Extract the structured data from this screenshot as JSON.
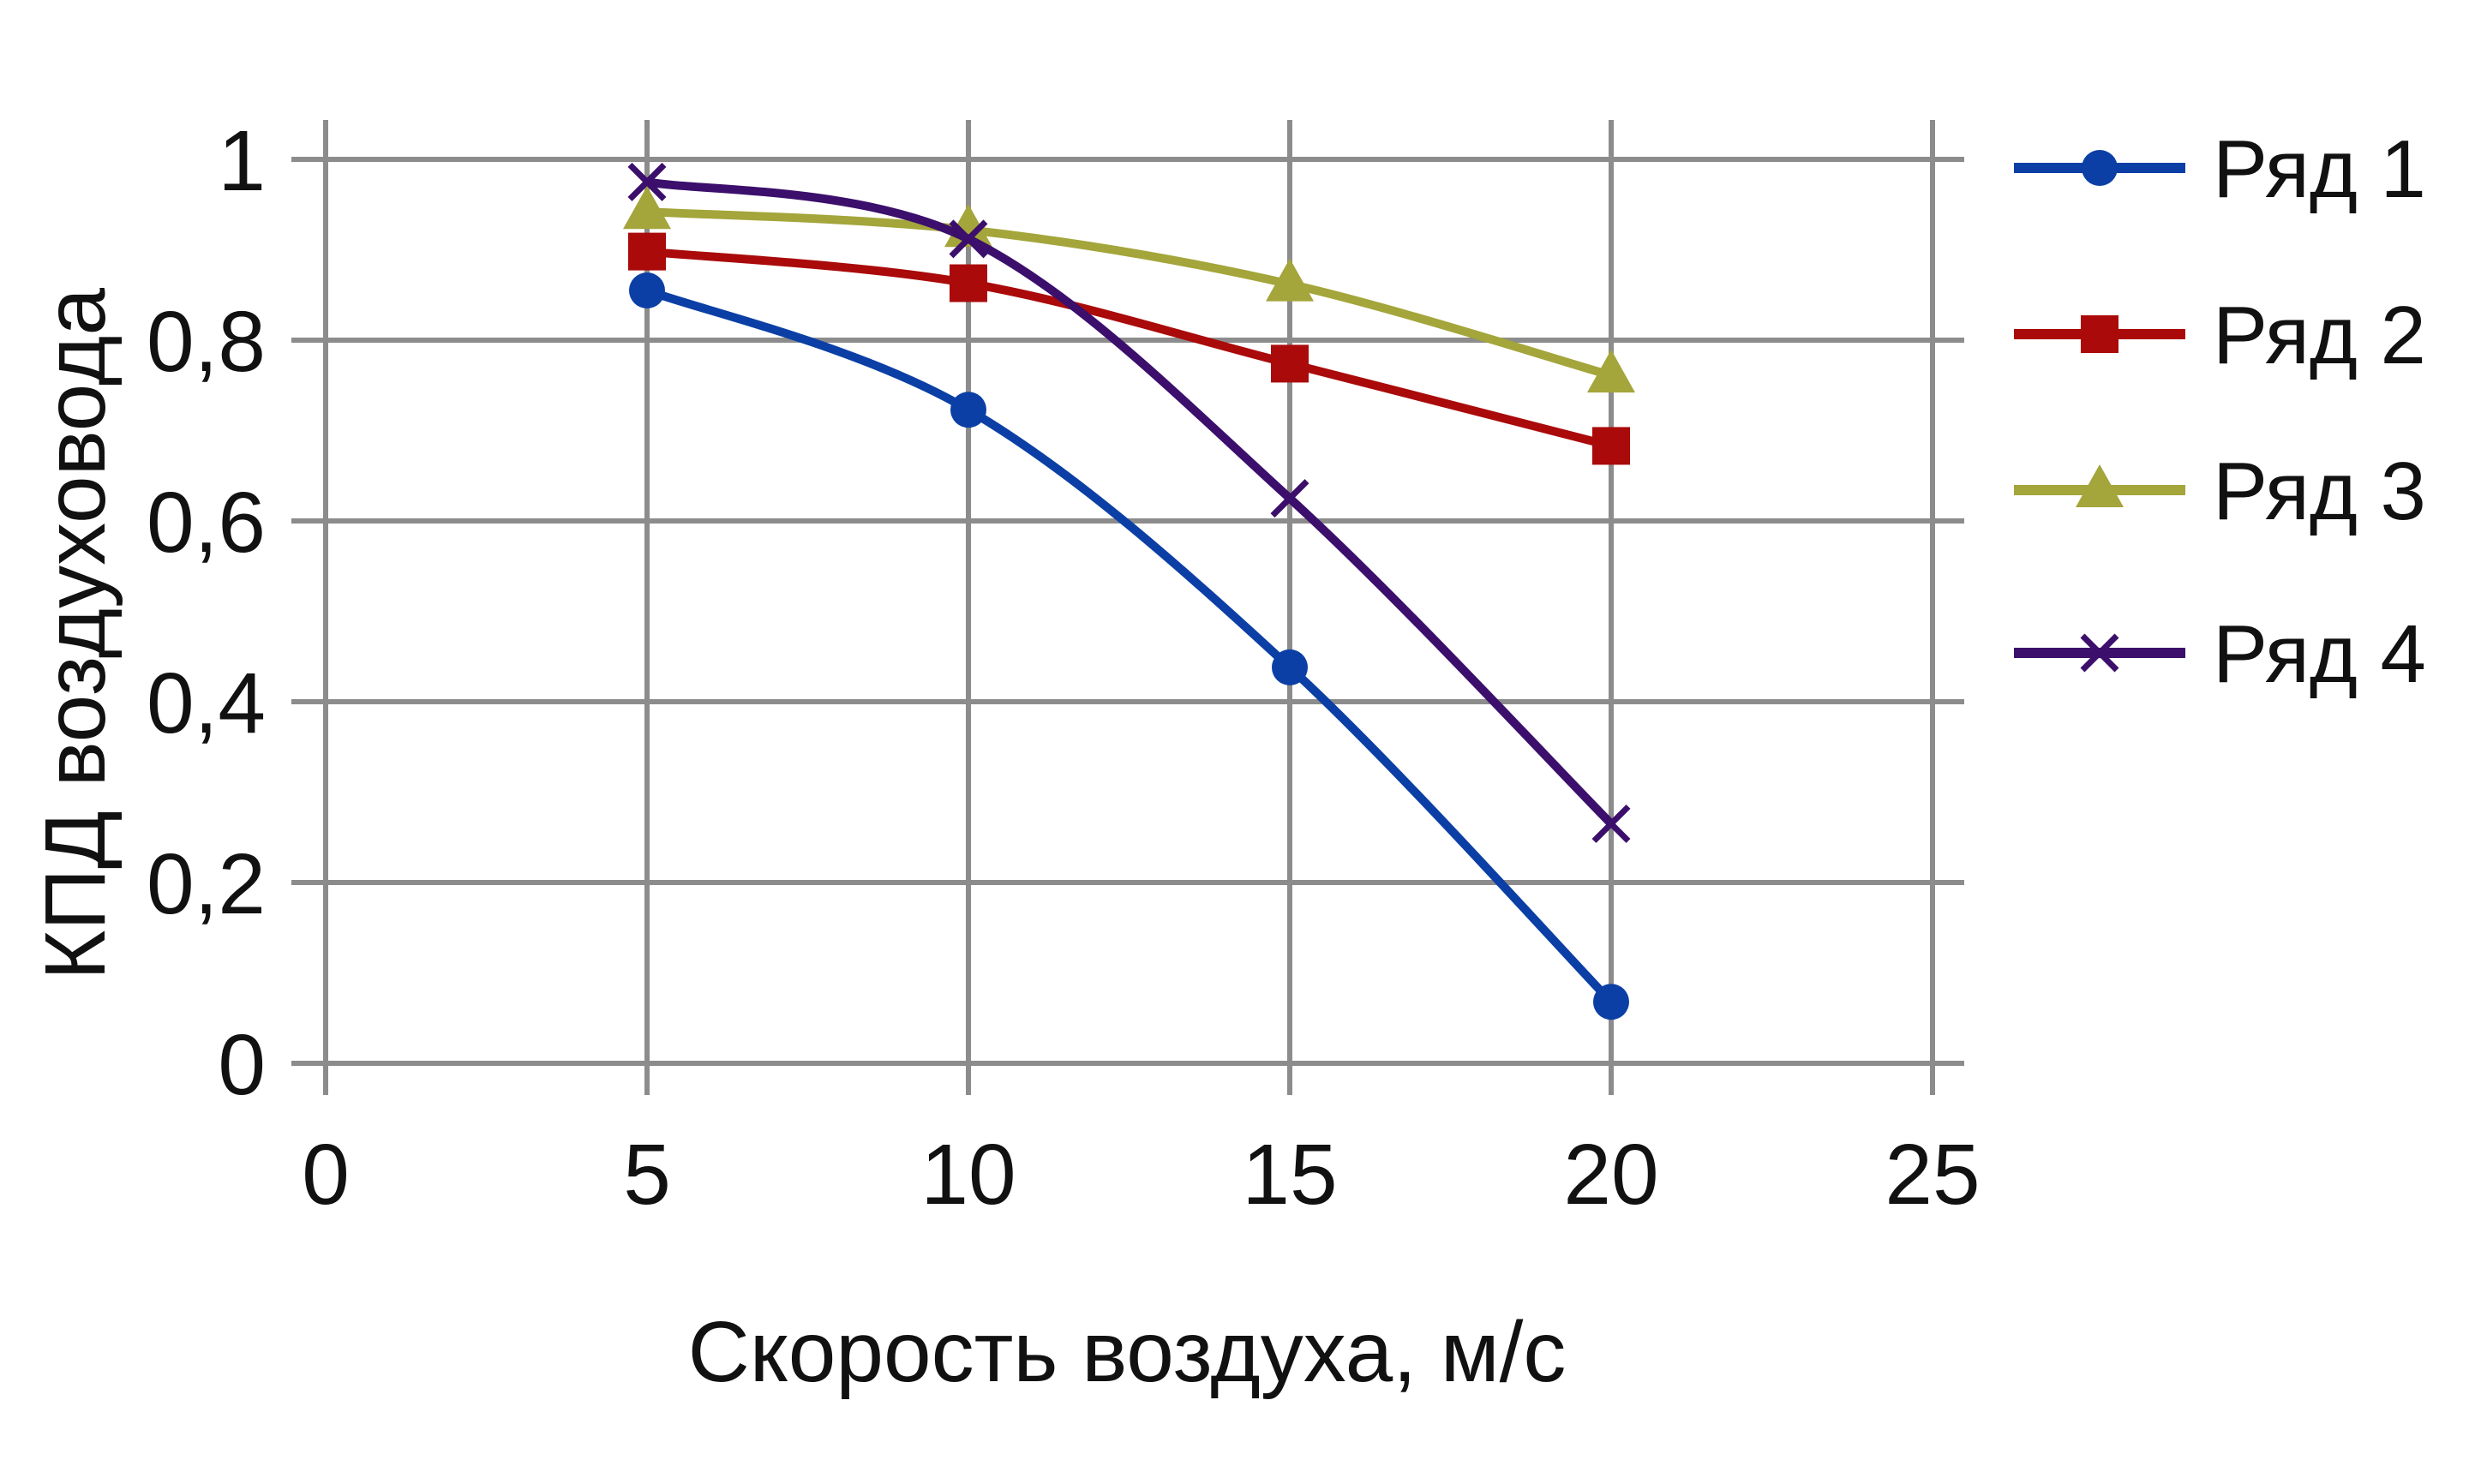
{
  "chart_data": {
    "type": "line",
    "xlabel": "Скорость воздуха, м/с",
    "ylabel": "КПД воздуховода",
    "xlim": [
      0,
      25
    ],
    "ylim": [
      0,
      1
    ],
    "x_ticks": [
      0,
      5,
      10,
      15,
      20,
      25
    ],
    "x_tick_labels": [
      "0",
      "5",
      "10",
      "15",
      "20",
      "25"
    ],
    "y_ticks": [
      0,
      0.2,
      0.4,
      0.6,
      0.8,
      1
    ],
    "y_tick_labels": [
      "0",
      "0,2",
      "0,4",
      "0,6",
      "0,8",
      "1"
    ],
    "grid": true,
    "legend_position": "right",
    "x": [
      5,
      10,
      15,
      20
    ],
    "series": [
      {
        "name": "Ряд 1",
        "color": "#0b3fa5",
        "marker": "circle",
        "values": [
          0.855,
          0.723,
          0.438,
          0.068
        ]
      },
      {
        "name": "Ряд 2",
        "color": "#aa0a0a",
        "marker": "square",
        "values": [
          0.898,
          0.863,
          0.774,
          0.683
        ]
      },
      {
        "name": "Ряд 3",
        "color": "#a4a53a",
        "marker": "triangle",
        "values": [
          0.942,
          0.922,
          0.862,
          0.761
        ]
      },
      {
        "name": "Ряд 4",
        "color": "#3b0f6b",
        "marker": "x",
        "values": [
          0.975,
          0.912,
          0.625,
          0.265
        ]
      }
    ]
  }
}
